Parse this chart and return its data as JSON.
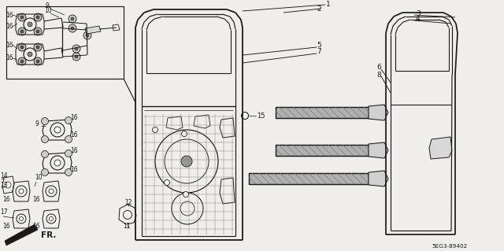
{
  "bg_color": "#f0eeea",
  "line_color": "#1a1a1a",
  "diagram_code": "5EG3-89402",
  "fr_label": "FR.",
  "figsize": [
    6.4,
    3.19
  ],
  "dpi": 100
}
